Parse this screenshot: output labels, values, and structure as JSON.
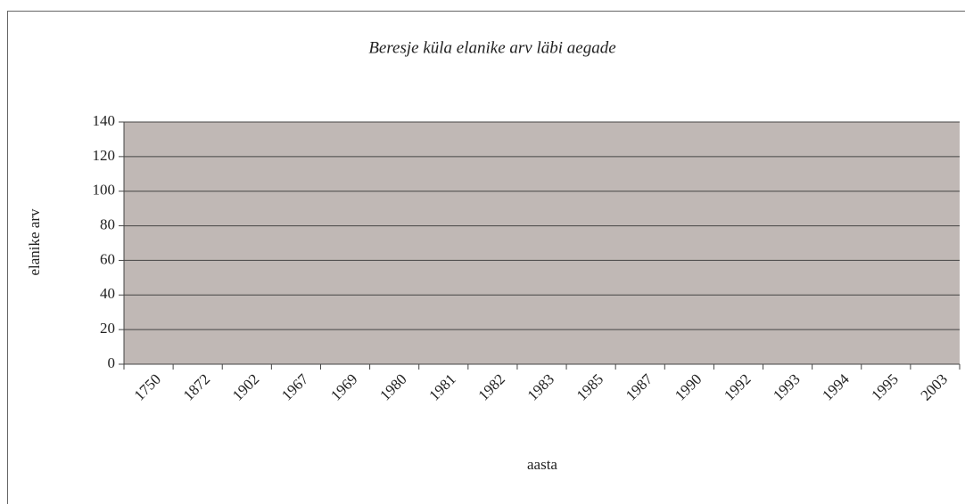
{
  "chart_data": {
    "type": "line",
    "title": "Beresje küla elanike arv läbi aegade",
    "x_label": "aasta",
    "y_label": "elanike arv",
    "categories": [
      "1750",
      "1872",
      "1902",
      "1967",
      "1969",
      "1980",
      "1981",
      "1982",
      "1983",
      "1985",
      "1987",
      "1990",
      "1992",
      "1993",
      "1994",
      "1995",
      "2003"
    ],
    "series": [],
    "ylim": [
      0,
      140
    ],
    "yticks": [
      0,
      20,
      40,
      60,
      80,
      100,
      120,
      140
    ],
    "grid": true,
    "plot_color": "#c0b8b5"
  }
}
